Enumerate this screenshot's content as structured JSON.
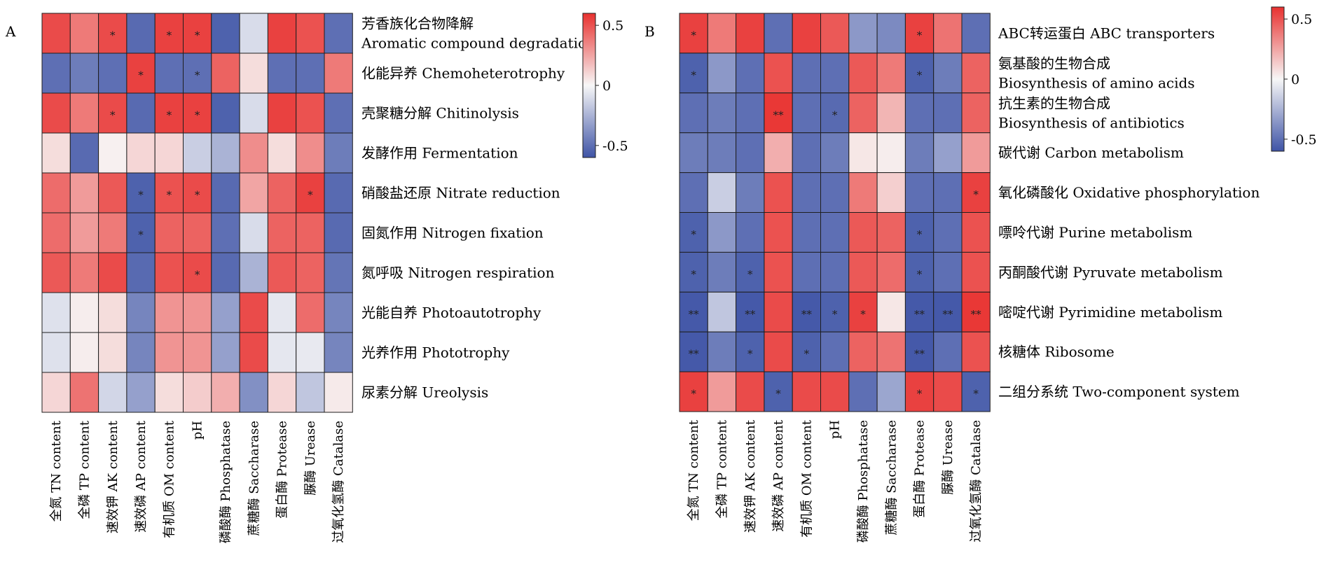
{
  "colorscale": {
    "low": "#3f54a6",
    "mid": "#f7f7f7",
    "high": "#e8312f",
    "min": -0.6,
    "max": 0.6,
    "ticks": [
      0.5,
      0,
      -0.5
    ],
    "tick_labels": [
      "0.5",
      "0",
      "-0.5"
    ]
  },
  "chart_data": [
    {
      "type": "heatmap",
      "panel": "A",
      "title": "",
      "columns": [
        "全氮 TN content",
        "全磷 TP content",
        "速效钾 AK content",
        "速效磷 AP content",
        "有机质 OM content",
        "pH",
        "磷酸酶 Phosphatase",
        "蔗糖酶 Saccharase",
        "蛋白酶 Protease",
        "脲酶 Urease",
        "过氧化氢酶 Catalase"
      ],
      "rows": [
        {
          "cn": "芳香族化合物降解",
          "en": "Aromatic compound degradation"
        },
        {
          "cn": "化能异养",
          "en": "Chemoheterotrophy"
        },
        {
          "cn": "壳聚糖分解",
          "en": "Chitinolysis"
        },
        {
          "cn": "发酵作用",
          "en": "Fermentation"
        },
        {
          "cn": "硝酸盐还原",
          "en": "Nitrate reduction"
        },
        {
          "cn": "固氮作用",
          "en": "Nitrogen fixation"
        },
        {
          "cn": "氮呼吸",
          "en": "Nitrogen respiration"
        },
        {
          "cn": "光能自养",
          "en": "Photoautotrophy"
        },
        {
          "cn": "光养作用",
          "en": "Phototrophy"
        },
        {
          "cn": "尿素分解",
          "en": "Ureolysis"
        }
      ],
      "values": [
        [
          0.52,
          0.38,
          0.52,
          -0.52,
          0.55,
          0.55,
          -0.55,
          -0.1,
          0.55,
          0.5,
          -0.5
        ],
        [
          -0.5,
          -0.45,
          -0.5,
          0.55,
          -0.5,
          -0.5,
          0.45,
          0.08,
          -0.5,
          -0.5,
          0.38
        ],
        [
          0.52,
          0.38,
          0.52,
          -0.52,
          0.55,
          0.55,
          -0.55,
          -0.1,
          0.55,
          0.5,
          -0.5
        ],
        [
          0.08,
          -0.52,
          0.02,
          0.1,
          0.1,
          -0.15,
          -0.25,
          0.32,
          0.08,
          0.32,
          -0.45
        ],
        [
          0.42,
          0.28,
          0.48,
          -0.55,
          0.5,
          0.52,
          -0.52,
          0.25,
          0.45,
          0.55,
          -0.52
        ],
        [
          0.42,
          0.28,
          0.38,
          -0.55,
          0.45,
          0.45,
          -0.5,
          -0.1,
          0.45,
          0.45,
          -0.52
        ],
        [
          0.48,
          0.38,
          0.52,
          -0.52,
          0.5,
          0.52,
          -0.52,
          -0.25,
          0.48,
          0.45,
          -0.48
        ],
        [
          -0.08,
          0.03,
          0.08,
          -0.42,
          0.3,
          0.3,
          -0.32,
          0.52,
          -0.06,
          0.42,
          -0.42
        ],
        [
          -0.08,
          0.03,
          0.08,
          -0.42,
          0.3,
          0.3,
          -0.32,
          0.52,
          -0.06,
          -0.05,
          -0.42
        ],
        [
          0.1,
          0.4,
          -0.12,
          -0.32,
          0.08,
          0.13,
          0.22,
          -0.38,
          0.1,
          -0.18,
          0.04
        ]
      ],
      "significance": [
        [
          "",
          "",
          "*",
          "",
          "*",
          "*",
          "",
          "",
          "",
          "",
          ""
        ],
        [
          "",
          "",
          "",
          "*",
          "",
          "*",
          "",
          "",
          "",
          "",
          ""
        ],
        [
          "",
          "",
          "*",
          "",
          "*",
          "*",
          "",
          "",
          "",
          "",
          ""
        ],
        [
          "",
          "",
          "",
          "",
          "",
          "",
          "",
          "",
          "",
          "",
          ""
        ],
        [
          "",
          "",
          "",
          "*",
          "*",
          "*",
          "",
          "",
          "",
          "*",
          ""
        ],
        [
          "",
          "",
          "",
          "*",
          "",
          "",
          "",
          "",
          "",
          "",
          ""
        ],
        [
          "",
          "",
          "",
          "",
          "",
          "*",
          "",
          "",
          "",
          "",
          ""
        ],
        [
          "",
          "",
          "",
          "",
          "",
          "",
          "",
          "",
          "",
          "",
          ""
        ],
        [
          "",
          "",
          "",
          "",
          "",
          "",
          "",
          "",
          "",
          "",
          ""
        ],
        [
          "",
          "",
          "",
          "",
          "",
          "",
          "",
          "",
          "",
          "",
          ""
        ]
      ],
      "legend": "colorbar, right"
    },
    {
      "type": "heatmap",
      "panel": "B",
      "title": "",
      "columns": [
        "全氮 TN content",
        "全磷 TP content",
        "速效钾 AK content",
        "速效磷 AP content",
        "有机质 OM content",
        "pH",
        "磷酸酶 Phosphatase",
        "蔗糖酶 Saccharase",
        "蛋白酶 Protease",
        "脲酶 Urease",
        "过氧化氢酶 Catalase"
      ],
      "rows": [
        {
          "cn": "ABC转运蛋白",
          "en": "ABC transporters"
        },
        {
          "cn": "氨基酸的生物合成",
          "en": "Biosynthesis of amino acids"
        },
        {
          "cn": "抗生素的生物合成",
          "en": "Biosynthesis of antibiotics"
        },
        {
          "cn": "碳代谢",
          "en": "Carbon metabolism"
        },
        {
          "cn": "氧化磷酸化",
          "en": "Oxidative phosphorylation"
        },
        {
          "cn": "嘌呤代谢",
          "en": "Purine metabolism"
        },
        {
          "cn": "丙酮酸代谢",
          "en": "Pyruvate metabolism"
        },
        {
          "cn": "嘧啶代谢",
          "en": "Pyrimidine metabolism"
        },
        {
          "cn": "核糖体",
          "en": "Ribosome"
        },
        {
          "cn": "二组分系统",
          "en": "Two-component system"
        }
      ],
      "values": [
        [
          0.55,
          0.38,
          0.55,
          -0.5,
          0.55,
          0.48,
          -0.35,
          -0.4,
          0.55,
          0.4,
          -0.5
        ],
        [
          -0.55,
          -0.35,
          -0.5,
          0.5,
          -0.5,
          -0.5,
          0.48,
          0.38,
          -0.55,
          -0.45,
          0.45
        ],
        [
          -0.5,
          -0.45,
          -0.5,
          0.58,
          -0.5,
          -0.52,
          0.45,
          0.2,
          -0.5,
          -0.5,
          0.45
        ],
        [
          -0.45,
          -0.45,
          -0.5,
          0.22,
          -0.5,
          -0.45,
          0.05,
          0.03,
          -0.45,
          -0.32,
          0.28
        ],
        [
          -0.5,
          -0.15,
          -0.45,
          0.5,
          -0.5,
          -0.5,
          0.38,
          0.12,
          -0.5,
          -0.5,
          0.55
        ],
        [
          -0.55,
          -0.35,
          -0.5,
          0.5,
          -0.5,
          -0.5,
          0.48,
          0.45,
          -0.55,
          -0.5,
          0.5
        ],
        [
          -0.55,
          -0.45,
          -0.55,
          0.5,
          -0.5,
          -0.5,
          0.48,
          0.42,
          -0.55,
          -0.5,
          0.5
        ],
        [
          -0.58,
          -0.18,
          -0.58,
          0.52,
          -0.58,
          -0.55,
          0.55,
          0.05,
          -0.58,
          -0.58,
          0.58
        ],
        [
          -0.58,
          -0.45,
          -0.55,
          0.52,
          -0.55,
          -0.5,
          0.45,
          0.4,
          -0.58,
          -0.5,
          0.5
        ],
        [
          0.55,
          0.28,
          0.52,
          -0.55,
          0.52,
          0.52,
          -0.5,
          -0.3,
          0.55,
          0.52,
          -0.55
        ]
      ],
      "significance": [
        [
          "*",
          "",
          "",
          "",
          "",
          "",
          "",
          "",
          "*",
          "",
          ""
        ],
        [
          "*",
          "",
          "",
          "",
          "",
          "",
          "",
          "",
          "*",
          "",
          ""
        ],
        [
          "",
          "",
          "",
          "**",
          "",
          "*",
          "",
          "",
          "",
          "",
          ""
        ],
        [
          "",
          "",
          "",
          "",
          "",
          "",
          "",
          "",
          "",
          "",
          ""
        ],
        [
          "",
          "",
          "",
          "",
          "",
          "",
          "",
          "",
          "",
          "",
          "*"
        ],
        [
          "*",
          "",
          "",
          "",
          "",
          "",
          "",
          "",
          "*",
          "",
          ""
        ],
        [
          "*",
          "",
          "*",
          "",
          "",
          "",
          "",
          "",
          "*",
          "",
          ""
        ],
        [
          "**",
          "",
          "**",
          "",
          "**",
          "*",
          "*",
          "",
          "**",
          "**",
          "**"
        ],
        [
          "**",
          "",
          "*",
          "",
          "*",
          "",
          "",
          "",
          "**",
          "",
          ""
        ],
        [
          "*",
          "",
          "",
          "*",
          "",
          "",
          "",
          "",
          "*",
          "",
          "*"
        ]
      ],
      "legend": "colorbar, right"
    }
  ]
}
